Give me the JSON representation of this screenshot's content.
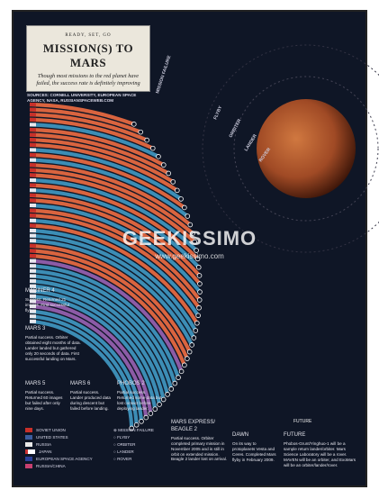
{
  "header": {
    "kicker": "READY, SET, GO",
    "title": "MISSION(S) TO MARS",
    "subtitle": "Though most missions to the red planet have failed, the success rate is definitely improving",
    "sources": "SOURCES: CORNELL UNIVERSITY, EUROPEAN SPACE AGENCY, NASA, RUSSIANSPACEWEB.COM"
  },
  "arc_labels": [
    "MISSION FAILURE",
    "FLYBY",
    "ORBITER",
    "LANDER",
    "ROVER"
  ],
  "annotations": [
    {
      "title": "MARINER 4",
      "text": "Success. Returned 21 images. First successful flyby."
    },
    {
      "title": "MARS 3",
      "text": "Partial success. Orbiter obtained eight months of data. Lander landed but gathered only 20 seconds of data. First successful landing on Mars."
    },
    {
      "title": "MARS 5",
      "text": "Partial success. Returned 60 images but failed after only nine days."
    },
    {
      "title": "MARS 6",
      "text": "Partial success. Lander produced data during descent but failed before landing."
    },
    {
      "title": "PHOBOS 2",
      "text": "Partial success. Returned some data but lost contact before deploying lander."
    },
    {
      "title": "MARS EXPRESS/ BEAGLE 2",
      "text": "Partial success. Orbiter completed primary mission in November 2005 and is still in orbit on extended mission. Beagle 2 lander lost on arrival."
    },
    {
      "title": "DAWN",
      "text": "On its way to protoplanets Vesta and Ceres. Completed Mars flyby in February 2009."
    },
    {
      "title": "FUTURE",
      "text": "Phobos-Grunt/Yinghuo-1 will be a sample return lander/orbiter. Mars Science Laboratory will be a rover. MAVEN will be an orbiter, and ExoMars will be an orbiter/lander/rover."
    }
  ],
  "legend": {
    "agencies": [
      "SOVIET UNION",
      "UNITED STATES",
      "RUSSIA",
      "JAPAN",
      "EUROPEAN SPACE AGENCY",
      "RUSSIA/CHINA"
    ],
    "types": [
      "MISSION FAILURE",
      "FLYBY",
      "ORBITER",
      "LANDER",
      "ROVER"
    ]
  },
  "future_label": "FUTURE",
  "watermark": {
    "name": "GEEKISSIMO",
    "url": "www.geekissimo.com"
  }
}
